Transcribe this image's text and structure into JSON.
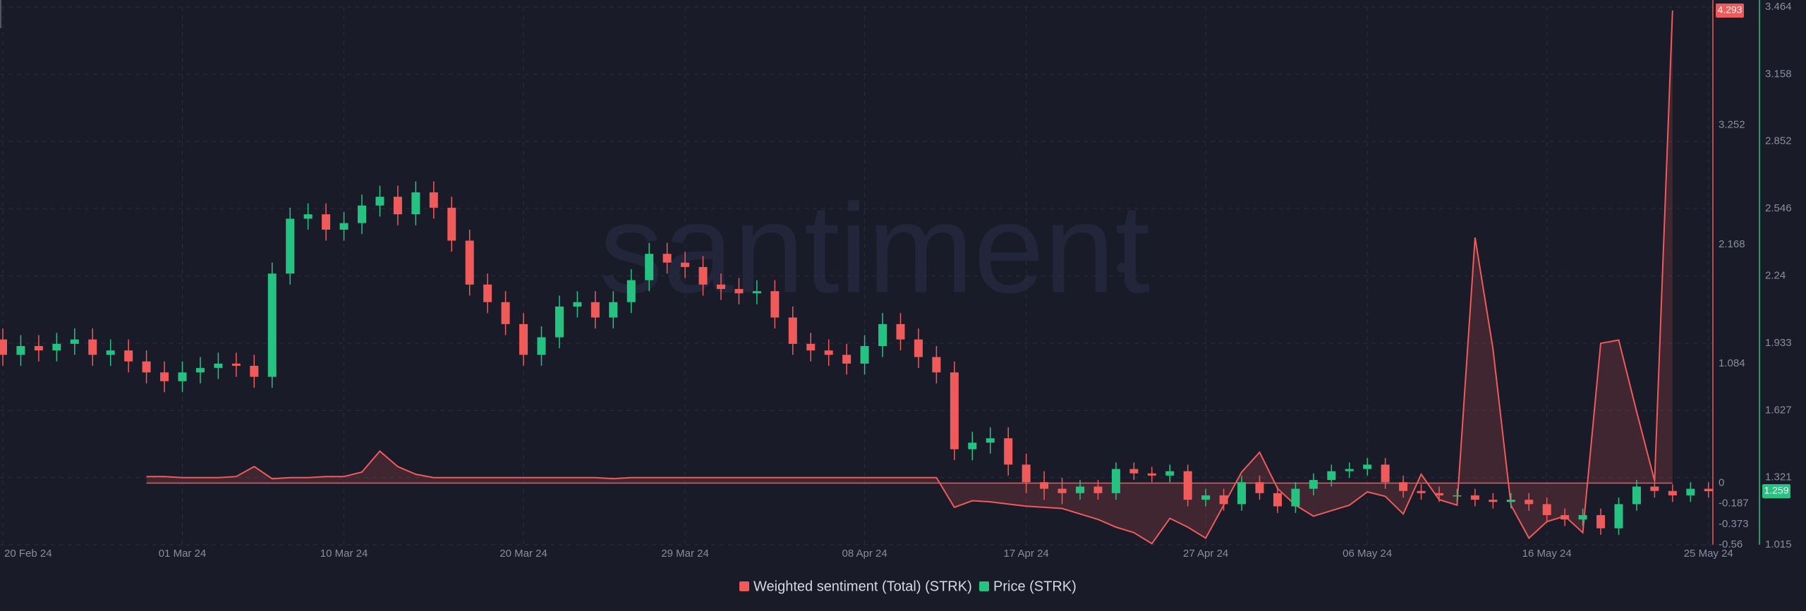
{
  "chart_data": {
    "type": "candlestick",
    "watermark": "santiment",
    "categories": [
      "20 Feb 24",
      null,
      null,
      null,
      null,
      null,
      null,
      null,
      null,
      null,
      "01 Mar 24",
      null,
      null,
      null,
      null,
      null,
      null,
      null,
      null,
      "10 Mar 24",
      null,
      null,
      null,
      null,
      null,
      null,
      null,
      null,
      null,
      "20 Mar 24",
      null,
      null,
      null,
      null,
      null,
      null,
      null,
      null,
      "29 Mar 24",
      null,
      null,
      null,
      null,
      null,
      null,
      null,
      null,
      null,
      "08 Apr 24",
      null,
      null,
      null,
      null,
      null,
      null,
      null,
      null,
      "17 Apr 24",
      null,
      null,
      null,
      null,
      null,
      null,
      null,
      null,
      null,
      "27 Apr 24",
      null,
      null,
      null,
      null,
      null,
      null,
      null,
      null,
      "06 May 24",
      null,
      null,
      null,
      null,
      null,
      null,
      null,
      null,
      null,
      "16 May 24",
      null,
      null,
      null,
      null,
      null,
      null,
      null,
      null,
      "25 May 24"
    ],
    "ylim": [
      -0.56,
      4.293
    ],
    "yticks": [
      -0.56,
      -0.373,
      -0.187,
      0,
      1.084,
      2.168,
      3.252
    ],
    "y2lim": [
      1.015,
      3.464
    ],
    "y2ticks": [
      1.015,
      1.321,
      1.627,
      1.933,
      2.24,
      2.546,
      2.852,
      3.158,
      3.464
    ],
    "grid": true,
    "legend": "bottom",
    "series": [
      {
        "name": "Weighted sentiment (Total) (STRK)",
        "type": "area",
        "color": "#ef5b5b",
        "values": [
          null,
          null,
          null,
          null,
          null,
          null,
          null,
          null,
          0.06,
          0.06,
          0.05,
          0.05,
          0.05,
          0.06,
          0.15,
          0.04,
          0.05,
          0.05,
          0.06,
          0.06,
          0.1,
          0.29,
          0.15,
          0.08,
          0.05,
          0.05,
          0.05,
          0.05,
          0.05,
          0.05,
          0.05,
          0.05,
          0.05,
          0.05,
          0.04,
          0.05,
          0.05,
          0.05,
          0.05,
          0.05,
          0.05,
          0.05,
          0.05,
          0.05,
          0.05,
          0.05,
          0.05,
          0.05,
          0.05,
          0.05,
          0.05,
          0.05,
          0.05,
          -0.22,
          -0.16,
          -0.17,
          -0.19,
          -0.21,
          -0.22,
          -0.23,
          -0.28,
          -0.33,
          -0.4,
          -0.45,
          -0.55,
          -0.32,
          -0.4,
          -0.5,
          -0.2,
          0.1,
          0.28,
          -0.05,
          -0.2,
          -0.3,
          -0.25,
          -0.2,
          -0.08,
          -0.12,
          -0.28,
          0.08,
          -0.15,
          -0.2,
          2.23,
          1.22,
          -0.2,
          -0.5,
          -0.35,
          -0.3,
          -0.45,
          1.27,
          1.3,
          0.65,
          0.02,
          4.293,
          null,
          null
        ]
      },
      {
        "name": "Price (STRK)",
        "type": "candlestick",
        "axis": "y2",
        "color": "#26c281",
        "down_color": "#ef5b5b",
        "open": [
          1.95,
          1.88,
          1.92,
          1.9,
          1.93,
          1.95,
          1.88,
          1.9,
          1.85,
          1.8,
          1.76,
          1.8,
          1.82,
          1.84,
          1.83,
          1.78,
          2.25,
          2.5,
          2.52,
          2.45,
          2.48,
          2.56,
          2.6,
          2.52,
          2.62,
          2.55,
          2.4,
          2.2,
          2.12,
          2.02,
          1.88,
          1.96,
          2.1,
          2.12,
          2.05,
          2.12,
          2.22,
          2.34,
          2.3,
          2.28,
          2.2,
          2.18,
          2.16,
          2.17,
          2.05,
          1.93,
          1.9,
          1.88,
          1.84,
          1.92,
          2.02,
          1.95,
          1.87,
          1.8,
          1.45,
          1.48,
          1.5,
          1.38,
          1.3,
          1.27,
          1.25,
          1.28,
          1.25,
          1.36,
          1.34,
          1.33,
          1.35,
          1.22,
          1.24,
          1.2,
          1.3,
          1.25,
          1.19,
          1.27,
          1.31,
          1.35,
          1.36,
          1.38,
          1.3,
          1.26,
          1.25,
          1.24,
          1.24,
          1.22,
          1.21,
          1.22,
          1.2,
          1.15,
          1.13,
          1.15,
          1.09,
          1.2,
          1.28,
          1.26,
          1.24,
          1.27
        ],
        "high": [
          2.0,
          1.97,
          1.97,
          1.98,
          2.0,
          2.0,
          1.95,
          1.95,
          1.9,
          1.85,
          1.85,
          1.87,
          1.89,
          1.89,
          1.88,
          2.3,
          2.55,
          2.57,
          2.57,
          2.53,
          2.61,
          2.65,
          2.65,
          2.67,
          2.67,
          2.6,
          2.45,
          2.25,
          2.17,
          2.07,
          2.01,
          2.15,
          2.17,
          2.17,
          2.17,
          2.27,
          2.39,
          2.39,
          2.35,
          2.33,
          2.25,
          2.23,
          2.22,
          2.22,
          2.1,
          1.98,
          1.95,
          1.93,
          1.97,
          2.07,
          2.07,
          2.0,
          1.92,
          1.85,
          1.53,
          1.55,
          1.55,
          1.43,
          1.35,
          1.32,
          1.31,
          1.31,
          1.39,
          1.39,
          1.37,
          1.38,
          1.38,
          1.27,
          1.27,
          1.33,
          1.33,
          1.28,
          1.3,
          1.34,
          1.38,
          1.39,
          1.41,
          1.41,
          1.33,
          1.29,
          1.28,
          1.27,
          1.27,
          1.25,
          1.25,
          1.25,
          1.23,
          1.18,
          1.18,
          1.18,
          1.23,
          1.31,
          1.31,
          1.29,
          1.3,
          1.3
        ],
        "low": [
          1.83,
          1.83,
          1.85,
          1.85,
          1.88,
          1.83,
          1.83,
          1.8,
          1.75,
          1.71,
          1.71,
          1.75,
          1.77,
          1.78,
          1.73,
          1.73,
          2.2,
          2.45,
          2.4,
          2.4,
          2.43,
          2.51,
          2.47,
          2.47,
          2.5,
          2.35,
          2.15,
          2.07,
          1.97,
          1.83,
          1.83,
          1.91,
          2.05,
          2.0,
          2.0,
          2.07,
          2.17,
          2.25,
          2.23,
          2.15,
          2.13,
          2.11,
          2.11,
          2.0,
          1.88,
          1.85,
          1.83,
          1.79,
          1.79,
          1.87,
          1.9,
          1.82,
          1.75,
          1.4,
          1.4,
          1.43,
          1.33,
          1.25,
          1.22,
          1.2,
          1.22,
          1.22,
          1.22,
          1.31,
          1.3,
          1.3,
          1.19,
          1.19,
          1.17,
          1.17,
          1.22,
          1.16,
          1.16,
          1.24,
          1.28,
          1.32,
          1.33,
          1.27,
          1.23,
          1.22,
          1.21,
          1.21,
          1.19,
          1.18,
          1.18,
          1.17,
          1.12,
          1.1,
          1.1,
          1.06,
          1.06,
          1.17,
          1.23,
          1.21,
          1.21,
          1.23
        ],
        "close": [
          1.88,
          1.92,
          1.9,
          1.93,
          1.95,
          1.88,
          1.9,
          1.85,
          1.8,
          1.76,
          1.8,
          1.82,
          1.84,
          1.83,
          1.78,
          2.25,
          2.5,
          2.52,
          2.45,
          2.48,
          2.56,
          2.6,
          2.52,
          2.62,
          2.55,
          2.4,
          2.2,
          2.12,
          2.02,
          1.88,
          1.96,
          2.1,
          2.12,
          2.05,
          2.12,
          2.22,
          2.34,
          2.3,
          2.28,
          2.2,
          2.18,
          2.16,
          2.17,
          2.05,
          1.93,
          1.9,
          1.88,
          1.84,
          1.92,
          2.02,
          1.95,
          1.87,
          1.8,
          1.45,
          1.48,
          1.5,
          1.38,
          1.3,
          1.27,
          1.25,
          1.28,
          1.25,
          1.36,
          1.34,
          1.33,
          1.35,
          1.22,
          1.24,
          1.2,
          1.3,
          1.25,
          1.19,
          1.27,
          1.31,
          1.35,
          1.36,
          1.38,
          1.3,
          1.26,
          1.25,
          1.24,
          1.24,
          1.22,
          1.21,
          1.22,
          1.2,
          1.15,
          1.13,
          1.15,
          1.09,
          1.2,
          1.28,
          1.26,
          1.24,
          1.27,
          1.259
        ]
      }
    ]
  }
}
